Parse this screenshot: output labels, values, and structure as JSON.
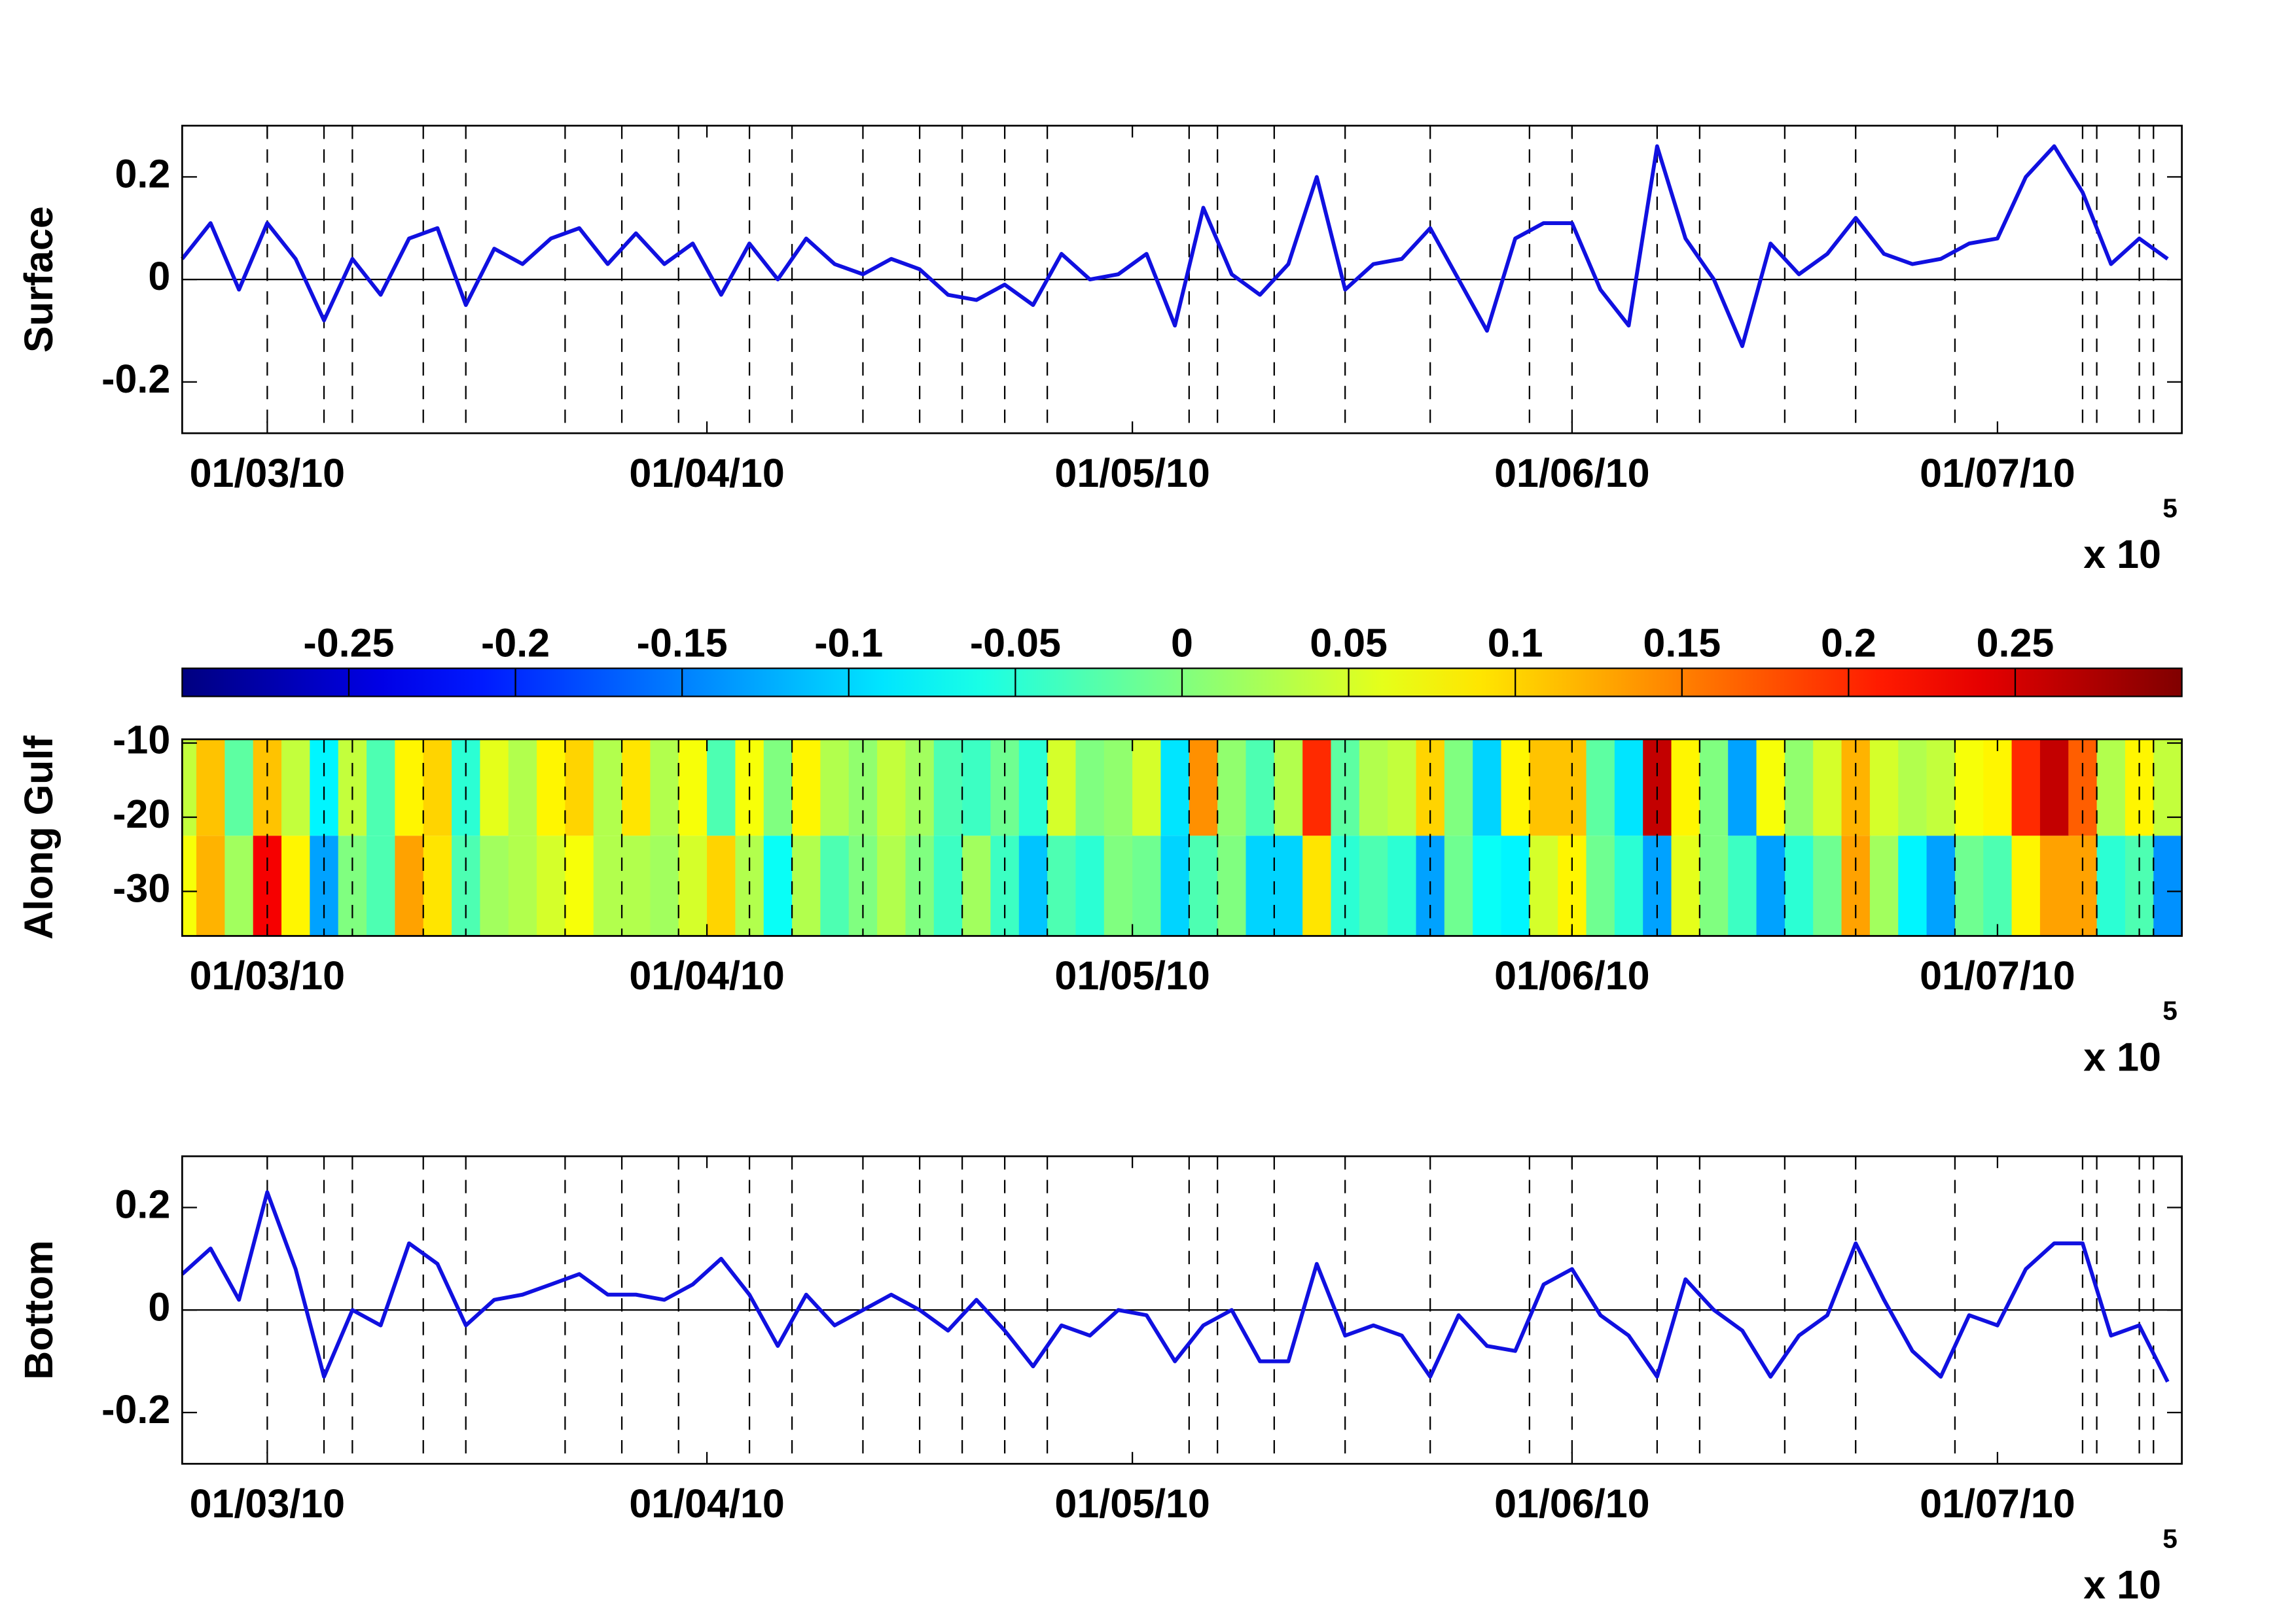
{
  "chart_data": [
    {
      "type": "line",
      "ylabel": "Surface",
      "x": [
        "2010-02-23",
        "2010-02-25",
        "2010-02-27",
        "2010-03-01",
        "2010-03-03",
        "2010-03-05",
        "2010-03-07",
        "2010-03-09",
        "2010-03-11",
        "2010-03-13",
        "2010-03-15",
        "2010-03-17",
        "2010-03-19",
        "2010-03-21",
        "2010-03-23",
        "2010-03-25",
        "2010-03-27",
        "2010-03-29",
        "2010-03-31",
        "2010-04-02",
        "2010-04-04",
        "2010-04-06",
        "2010-04-08",
        "2010-04-10",
        "2010-04-12",
        "2010-04-14",
        "2010-04-16",
        "2010-04-18",
        "2010-04-20",
        "2010-04-22",
        "2010-04-24",
        "2010-04-26",
        "2010-04-28",
        "2010-04-30",
        "2010-05-02",
        "2010-05-04",
        "2010-05-06",
        "2010-05-08",
        "2010-05-10",
        "2010-05-12",
        "2010-05-14",
        "2010-05-16",
        "2010-05-18",
        "2010-05-20",
        "2010-05-22",
        "2010-05-24",
        "2010-05-26",
        "2010-05-28",
        "2010-05-30",
        "2010-06-01",
        "2010-06-03",
        "2010-06-05",
        "2010-06-07",
        "2010-06-09",
        "2010-06-11",
        "2010-06-13",
        "2010-06-15",
        "2010-06-17",
        "2010-06-19",
        "2010-06-21",
        "2010-06-23",
        "2010-06-25",
        "2010-06-27",
        "2010-06-29",
        "2010-07-01",
        "2010-07-03",
        "2010-07-05",
        "2010-07-07",
        "2010-07-09",
        "2010-07-11",
        "2010-07-13"
      ],
      "values": [
        0.04,
        0.11,
        -0.02,
        0.11,
        0.04,
        -0.08,
        0.04,
        -0.03,
        0.08,
        0.1,
        -0.05,
        0.06,
        0.03,
        0.08,
        0.1,
        0.03,
        0.09,
        0.03,
        0.07,
        -0.03,
        0.07,
        0.0,
        0.08,
        0.03,
        0.01,
        0.04,
        0.02,
        -0.03,
        -0.04,
        -0.01,
        -0.05,
        0.05,
        0.0,
        0.01,
        0.05,
        -0.09,
        0.14,
        0.01,
        -0.03,
        0.03,
        0.2,
        -0.02,
        0.03,
        0.04,
        0.1,
        0.0,
        -0.1,
        0.08,
        0.11,
        0.11,
        -0.02,
        -0.09,
        0.26,
        0.08,
        0.0,
        -0.13,
        0.07,
        0.01,
        0.05,
        0.12,
        0.05,
        0.03,
        0.04,
        0.07,
        0.08,
        0.2,
        0.26,
        0.17,
        0.03,
        0.08,
        0.04
      ],
      "color": "#1010e0",
      "xlim": [
        "2010-02-23",
        "2010-07-14"
      ],
      "xticks": [
        {
          "value": "2010-03-01",
          "label": "01/03/10"
        },
        {
          "value": "2010-04-01",
          "label": "01/04/10"
        },
        {
          "value": "2010-05-01",
          "label": "01/05/10"
        },
        {
          "value": "2010-06-01",
          "label": "01/06/10"
        },
        {
          "value": "2010-07-01",
          "label": "01/07/10"
        }
      ],
      "x_multiplier": "x 10",
      "x_exponent": "5",
      "ylim": [
        -0.3,
        0.3
      ],
      "yticks": [
        -0.2,
        0,
        0.2
      ],
      "event_lines": [
        "2010-03-01",
        "2010-03-05",
        "2010-03-07",
        "2010-03-12",
        "2010-03-15",
        "2010-03-22",
        "2010-03-26",
        "2010-03-30",
        "2010-04-04",
        "2010-04-07",
        "2010-04-12",
        "2010-04-16",
        "2010-04-19",
        "2010-04-22",
        "2010-04-25",
        "2010-05-05",
        "2010-05-07",
        "2010-05-11",
        "2010-05-16",
        "2010-05-22",
        "2010-05-29",
        "2010-06-01",
        "2010-06-07",
        "2010-06-10",
        "2010-06-16",
        "2010-06-21",
        "2010-06-28",
        "2010-07-07",
        "2010-07-08",
        "2010-07-11",
        "2010-07-12"
      ]
    },
    {
      "type": "heatmap",
      "ylabel": "Along Gulf",
      "x": [
        "2010-02-23",
        "2010-02-25",
        "2010-02-27",
        "2010-03-01",
        "2010-03-03",
        "2010-03-05",
        "2010-03-07",
        "2010-03-09",
        "2010-03-11",
        "2010-03-13",
        "2010-03-15",
        "2010-03-17",
        "2010-03-19",
        "2010-03-21",
        "2010-03-23",
        "2010-03-25",
        "2010-03-27",
        "2010-03-29",
        "2010-03-31",
        "2010-04-02",
        "2010-04-04",
        "2010-04-06",
        "2010-04-08",
        "2010-04-10",
        "2010-04-12",
        "2010-04-14",
        "2010-04-16",
        "2010-04-18",
        "2010-04-20",
        "2010-04-22",
        "2010-04-24",
        "2010-04-26",
        "2010-04-28",
        "2010-04-30",
        "2010-05-02",
        "2010-05-04",
        "2010-05-06",
        "2010-05-08",
        "2010-05-10",
        "2010-05-12",
        "2010-05-14",
        "2010-05-16",
        "2010-05-18",
        "2010-05-20",
        "2010-05-22",
        "2010-05-24",
        "2010-05-26",
        "2010-05-28",
        "2010-05-30",
        "2010-06-01",
        "2010-06-03",
        "2010-06-05",
        "2010-06-07",
        "2010-06-09",
        "2010-06-11",
        "2010-06-13",
        "2010-06-15",
        "2010-06-17",
        "2010-06-19",
        "2010-06-21",
        "2010-06-23",
        "2010-06-25",
        "2010-06-27",
        "2010-06-29",
        "2010-07-01",
        "2010-07-03",
        "2010-07-05",
        "2010-07-07",
        "2010-07-09",
        "2010-07-11",
        "2010-07-13"
      ],
      "y": [
        -16,
        -29
      ],
      "values": [
        [
          0.04,
          0.11,
          -0.02,
          0.11,
          0.04,
          -0.08,
          0.04,
          -0.03,
          0.08,
          0.1,
          -0.05,
          0.06,
          0.03,
          0.08,
          0.1,
          0.03,
          0.09,
          0.03,
          0.07,
          -0.03,
          0.07,
          0.0,
          0.08,
          0.03,
          0.01,
          0.04,
          0.02,
          -0.03,
          -0.04,
          -0.01,
          -0.05,
          0.05,
          0.0,
          0.01,
          0.05,
          -0.09,
          0.14,
          0.01,
          -0.03,
          0.03,
          0.2,
          -0.02,
          0.03,
          0.04,
          0.1,
          0.0,
          -0.1,
          0.08,
          0.11,
          0.11,
          -0.02,
          -0.09,
          0.26,
          0.08,
          0.0,
          -0.13,
          0.07,
          0.01,
          0.05,
          0.12,
          0.05,
          0.03,
          0.04,
          0.07,
          0.08,
          0.2,
          0.26,
          0.17,
          0.03,
          0.08,
          0.04
        ],
        [
          0.07,
          0.12,
          0.02,
          0.23,
          0.08,
          -0.13,
          0.0,
          -0.03,
          0.13,
          0.09,
          -0.03,
          0.02,
          0.03,
          0.05,
          0.07,
          0.03,
          0.03,
          0.02,
          0.05,
          0.1,
          0.03,
          -0.07,
          0.03,
          -0.03,
          0.0,
          0.03,
          0.0,
          -0.04,
          0.02,
          -0.04,
          -0.11,
          -0.03,
          -0.05,
          0.0,
          -0.01,
          -0.1,
          -0.03,
          0.0,
          -0.1,
          -0.1,
          0.09,
          -0.05,
          -0.03,
          -0.05,
          -0.13,
          -0.01,
          -0.07,
          -0.08,
          0.05,
          0.08,
          -0.01,
          -0.05,
          -0.13,
          0.06,
          0.0,
          -0.04,
          -0.13,
          -0.05,
          -0.01,
          0.13,
          0.02,
          -0.08,
          -0.13,
          -0.01,
          -0.03,
          0.08,
          0.13,
          0.13,
          -0.05,
          -0.03,
          -0.14
        ]
      ],
      "clim": [
        -0.3,
        0.3
      ],
      "colorbar_ticks": [
        -0.25,
        -0.2,
        -0.15,
        -0.1,
        -0.05,
        0,
        0.05,
        0.1,
        0.15,
        0.2,
        0.25
      ],
      "xlim": [
        "2010-02-23",
        "2010-07-14"
      ],
      "xticks": [
        {
          "value": "2010-03-01",
          "label": "01/03/10"
        },
        {
          "value": "2010-04-01",
          "label": "01/04/10"
        },
        {
          "value": "2010-05-01",
          "label": "01/05/10"
        },
        {
          "value": "2010-06-01",
          "label": "01/06/10"
        },
        {
          "value": "2010-07-01",
          "label": "01/07/10"
        }
      ],
      "x_multiplier": "x 10",
      "x_exponent": "5",
      "ylim": [
        -36,
        -9.5
      ],
      "yticks": [
        -30,
        -20,
        -10
      ],
      "event_lines": [
        "2010-03-01",
        "2010-03-05",
        "2010-03-07",
        "2010-03-12",
        "2010-03-15",
        "2010-03-22",
        "2010-03-26",
        "2010-03-30",
        "2010-04-04",
        "2010-04-07",
        "2010-04-12",
        "2010-04-16",
        "2010-04-19",
        "2010-04-22",
        "2010-04-25",
        "2010-05-05",
        "2010-05-07",
        "2010-05-11",
        "2010-05-16",
        "2010-05-22",
        "2010-05-29",
        "2010-06-01",
        "2010-06-07",
        "2010-06-10",
        "2010-06-16",
        "2010-06-21",
        "2010-06-28",
        "2010-07-07",
        "2010-07-08",
        "2010-07-11",
        "2010-07-12"
      ]
    },
    {
      "type": "line",
      "ylabel": "Bottom",
      "x": [
        "2010-02-23",
        "2010-02-25",
        "2010-02-27",
        "2010-03-01",
        "2010-03-03",
        "2010-03-05",
        "2010-03-07",
        "2010-03-09",
        "2010-03-11",
        "2010-03-13",
        "2010-03-15",
        "2010-03-17",
        "2010-03-19",
        "2010-03-21",
        "2010-03-23",
        "2010-03-25",
        "2010-03-27",
        "2010-03-29",
        "2010-03-31",
        "2010-04-02",
        "2010-04-04",
        "2010-04-06",
        "2010-04-08",
        "2010-04-10",
        "2010-04-12",
        "2010-04-14",
        "2010-04-16",
        "2010-04-18",
        "2010-04-20",
        "2010-04-22",
        "2010-04-24",
        "2010-04-26",
        "2010-04-28",
        "2010-04-30",
        "2010-05-02",
        "2010-05-04",
        "2010-05-06",
        "2010-05-08",
        "2010-05-10",
        "2010-05-12",
        "2010-05-14",
        "2010-05-16",
        "2010-05-18",
        "2010-05-20",
        "2010-05-22",
        "2010-05-24",
        "2010-05-26",
        "2010-05-28",
        "2010-05-30",
        "2010-06-01",
        "2010-06-03",
        "2010-06-05",
        "2010-06-07",
        "2010-06-09",
        "2010-06-11",
        "2010-06-13",
        "2010-06-15",
        "2010-06-17",
        "2010-06-19",
        "2010-06-21",
        "2010-06-23",
        "2010-06-25",
        "2010-06-27",
        "2010-06-29",
        "2010-07-01",
        "2010-07-03",
        "2010-07-05",
        "2010-07-07",
        "2010-07-09",
        "2010-07-11",
        "2010-07-13"
      ],
      "values": [
        0.07,
        0.12,
        0.02,
        0.23,
        0.08,
        -0.13,
        0.0,
        -0.03,
        0.13,
        0.09,
        -0.03,
        0.02,
        0.03,
        0.05,
        0.07,
        0.03,
        0.03,
        0.02,
        0.05,
        0.1,
        0.03,
        -0.07,
        0.03,
        -0.03,
        0.0,
        0.03,
        0.0,
        -0.04,
        0.02,
        -0.04,
        -0.11,
        -0.03,
        -0.05,
        0.0,
        -0.01,
        -0.1,
        -0.03,
        0.0,
        -0.1,
        -0.1,
        0.09,
        -0.05,
        -0.03,
        -0.05,
        -0.13,
        -0.01,
        -0.07,
        -0.08,
        0.05,
        0.08,
        -0.01,
        -0.05,
        -0.13,
        0.06,
        0.0,
        -0.04,
        -0.13,
        -0.05,
        -0.01,
        0.13,
        0.02,
        -0.08,
        -0.13,
        -0.01,
        -0.03,
        0.08,
        0.13,
        0.13,
        -0.05,
        -0.03,
        -0.14
      ],
      "color": "#1010e0",
      "xlim": [
        "2010-02-23",
        "2010-07-14"
      ],
      "xticks": [
        {
          "value": "2010-03-01",
          "label": "01/03/10"
        },
        {
          "value": "2010-04-01",
          "label": "01/04/10"
        },
        {
          "value": "2010-05-01",
          "label": "01/05/10"
        },
        {
          "value": "2010-06-01",
          "label": "01/06/10"
        },
        {
          "value": "2010-07-01",
          "label": "01/07/10"
        }
      ],
      "x_multiplier": "x 10",
      "x_exponent": "5",
      "ylim": [
        -0.3,
        0.3
      ],
      "yticks": [
        -0.2,
        0,
        0.2
      ],
      "event_lines": [
        "2010-03-01",
        "2010-03-05",
        "2010-03-07",
        "2010-03-12",
        "2010-03-15",
        "2010-03-22",
        "2010-03-26",
        "2010-03-30",
        "2010-04-04",
        "2010-04-07",
        "2010-04-12",
        "2010-04-16",
        "2010-04-19",
        "2010-04-22",
        "2010-04-25",
        "2010-05-05",
        "2010-05-07",
        "2010-05-11",
        "2010-05-16",
        "2010-05-22",
        "2010-05-29",
        "2010-06-01",
        "2010-06-07",
        "2010-06-10",
        "2010-06-16",
        "2010-06-21",
        "2010-06-28",
        "2010-07-07",
        "2010-07-08",
        "2010-07-11",
        "2010-07-12"
      ]
    }
  ]
}
